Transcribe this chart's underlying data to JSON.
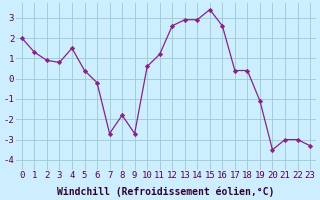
{
  "x": [
    0,
    1,
    2,
    3,
    4,
    5,
    6,
    7,
    8,
    9,
    10,
    11,
    12,
    13,
    14,
    15,
    16,
    17,
    18,
    19,
    20,
    21,
    22,
    23
  ],
  "y": [
    2.0,
    1.3,
    0.9,
    0.8,
    1.5,
    0.4,
    -0.2,
    -2.7,
    -1.8,
    -2.7,
    0.6,
    1.2,
    2.6,
    2.9,
    2.9,
    3.4,
    2.6,
    0.4,
    0.4,
    -1.1,
    -3.5,
    -3.0,
    -3.0,
    -3.3
  ],
  "line_color": "#882288",
  "marker": "D",
  "marker_size": 2.2,
  "bg_color": "#cceeff",
  "grid_color": "#99cccc",
  "xlabel": "Windchill (Refroidissement éolien,°C)",
  "ylim": [
    -4.5,
    3.7
  ],
  "yticks": [
    -4,
    -3,
    -2,
    -1,
    0,
    1,
    2,
    3
  ],
  "xticks": [
    0,
    1,
    2,
    3,
    4,
    5,
    6,
    7,
    8,
    9,
    10,
    11,
    12,
    13,
    14,
    15,
    16,
    17,
    18,
    19,
    20,
    21,
    22,
    23
  ],
  "tick_label_fontsize": 6.5,
  "xlabel_fontsize": 7.0,
  "line_width": 0.9
}
